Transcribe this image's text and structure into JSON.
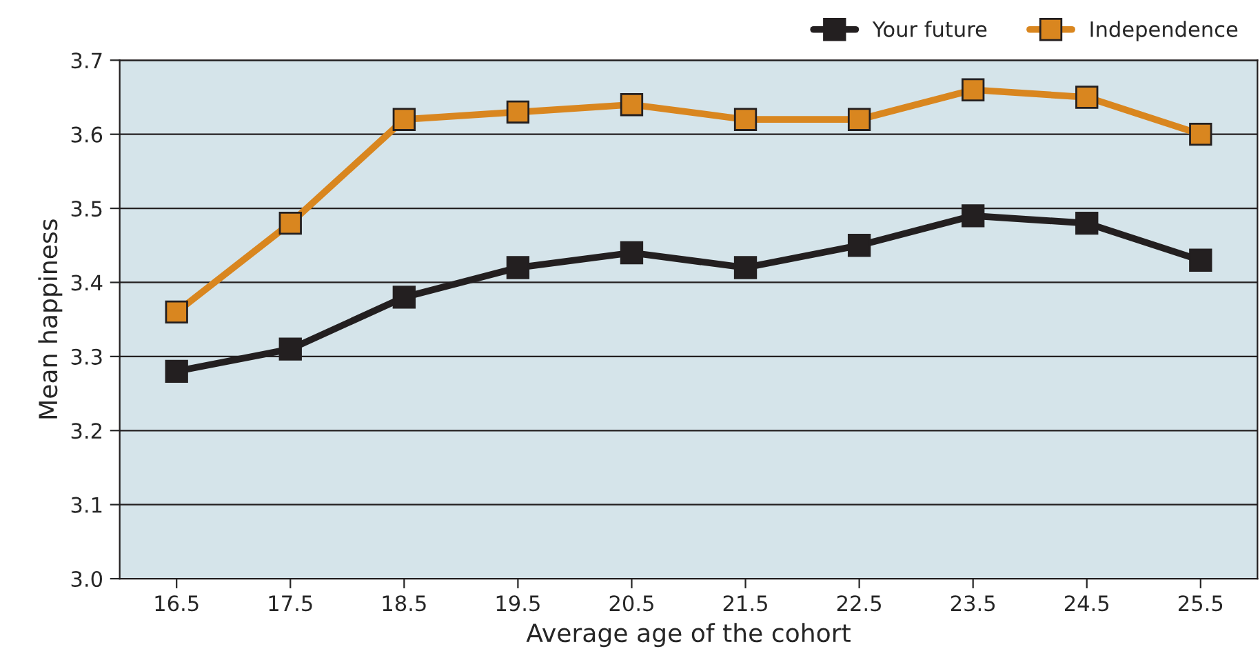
{
  "chart_data": {
    "type": "line",
    "xlabel": "Average age of the cohort",
    "ylabel": "Mean happiness",
    "x": [
      16.5,
      17.5,
      18.5,
      19.5,
      20.5,
      21.5,
      22.5,
      23.5,
      24.5,
      25.5
    ],
    "series": [
      {
        "name": "Your future",
        "color": "#231f20",
        "values": [
          3.28,
          3.31,
          3.38,
          3.42,
          3.44,
          3.42,
          3.45,
          3.49,
          3.48,
          3.43
        ]
      },
      {
        "name": "Independence",
        "color": "#d9861f",
        "values": [
          3.36,
          3.48,
          3.62,
          3.63,
          3.64,
          3.62,
          3.62,
          3.66,
          3.65,
          3.6
        ]
      }
    ],
    "xlim": [
      16,
      26
    ],
    "xticks": [
      16.5,
      17.5,
      18.5,
      19.5,
      20.5,
      21.5,
      22.5,
      23.5,
      24.5,
      25.5
    ],
    "ylim": [
      3.0,
      3.7
    ],
    "yticks": [
      {
        "value": 3.0,
        "label": "3.0"
      },
      3.1,
      3.2,
      3.3,
      3.4,
      3.5,
      3.6,
      3.7
    ],
    "grid": "y",
    "legend": "top right",
    "marker": "square",
    "line_style": "solid"
  }
}
